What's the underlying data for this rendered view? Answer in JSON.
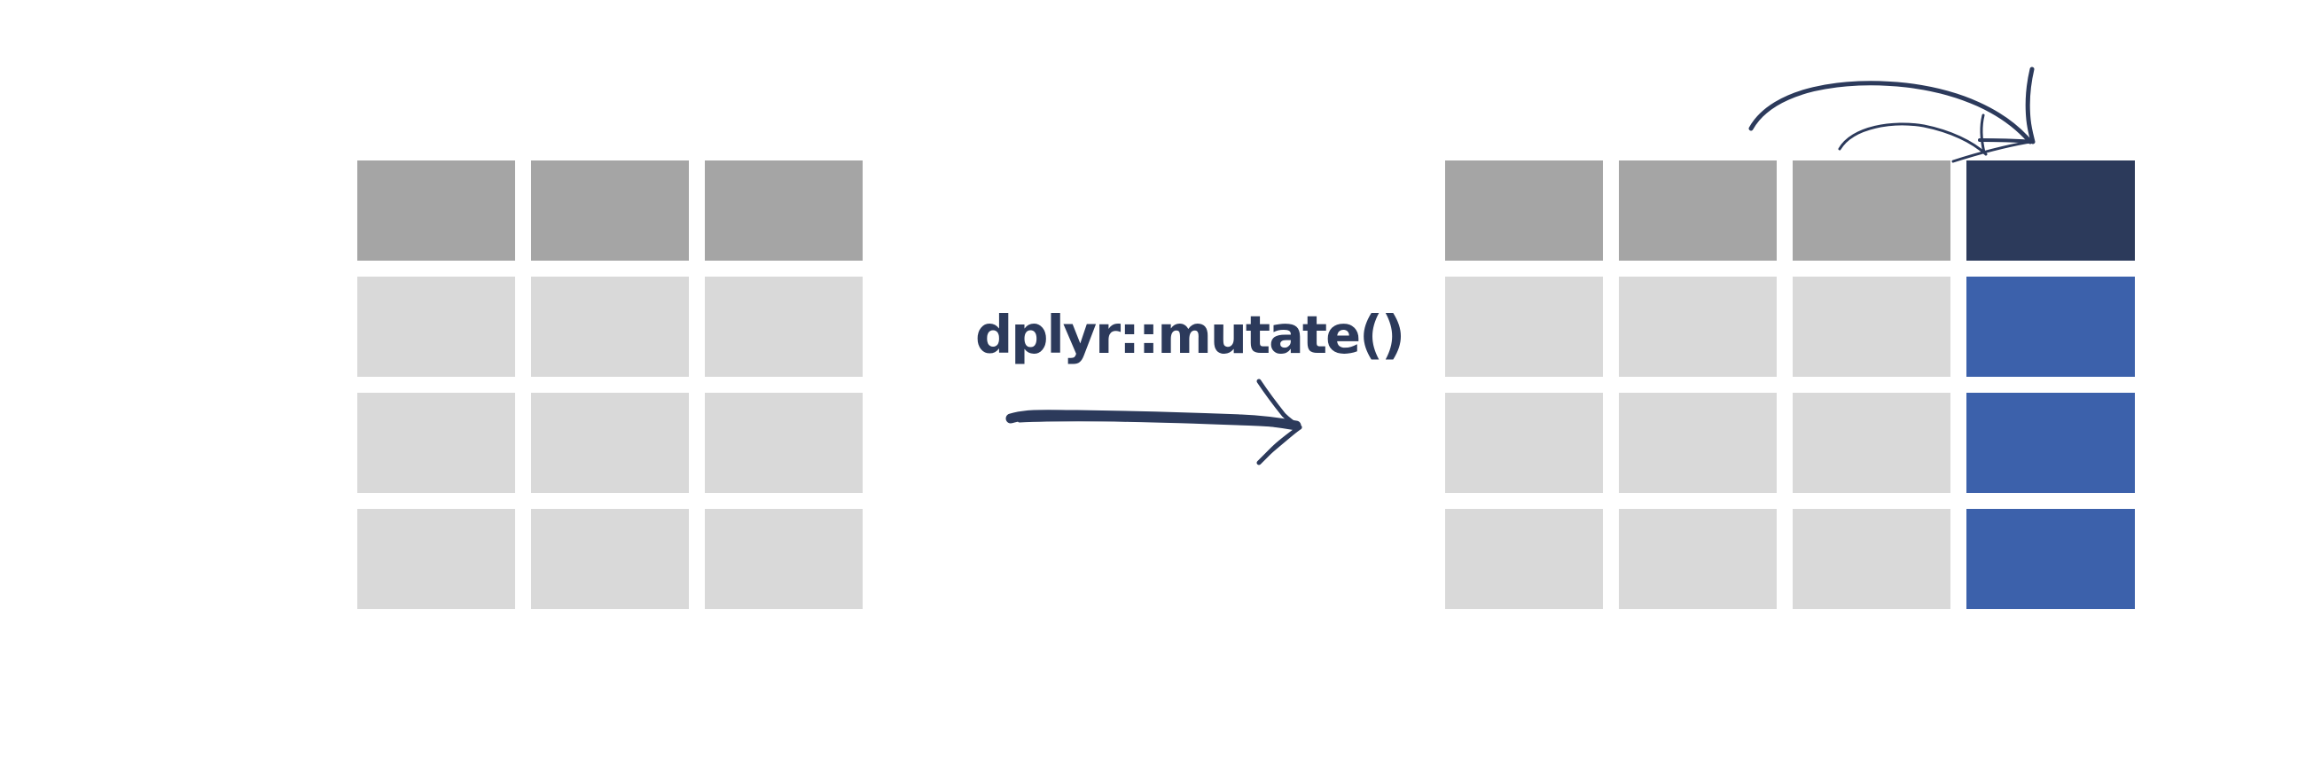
{
  "function_label": "dplyr::mutate()",
  "colors": {
    "header": "#a5a5a5",
    "body": "#d9d9d9",
    "new_column_header": "#2c3a5b",
    "new_column_body": "#3c61ab",
    "ink": "#2c3a5b"
  },
  "input_table": {
    "columns": 3,
    "body_rows": 3
  },
  "output_table": {
    "columns": 3,
    "new_columns": 1,
    "body_rows": 3
  },
  "icons": {
    "transform_arrow": "hand-drawn-right-arrow-icon",
    "derive_arrows": "curved-arrows-icon"
  }
}
